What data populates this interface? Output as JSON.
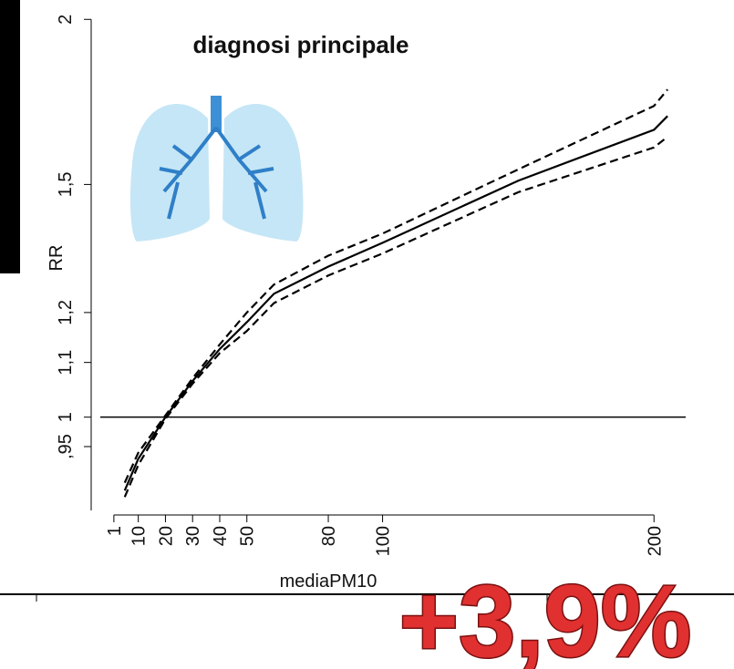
{
  "chart_data": {
    "type": "line",
    "title": "diagnosi principale",
    "x_label": "mediaPM10",
    "y_label": "RR",
    "annotation": "+3,9%",
    "x": [
      5,
      10,
      20,
      30,
      40,
      50,
      60,
      80,
      100,
      150,
      200,
      205
    ],
    "series": [
      {
        "color": "#000000",
        "dashed": false,
        "values": [
          0.88,
          0.93,
          1.0,
          1.065,
          1.126,
          1.18,
          1.24,
          1.3,
          1.355,
          1.51,
          1.65,
          1.69
        ]
      },
      {
        "color": "#000000",
        "dashed": true,
        "values": [
          0.892,
          0.94,
          1.003,
          1.07,
          1.135,
          1.2,
          1.26,
          1.325,
          1.377,
          1.54,
          1.72,
          1.77
        ]
      },
      {
        "color": "#000000",
        "dashed": true,
        "values": [
          0.87,
          0.92,
          0.997,
          1.06,
          1.118,
          1.162,
          1.22,
          1.28,
          1.33,
          1.48,
          1.6,
          1.63
        ]
      }
    ],
    "reference_line": 1,
    "xlim": [
      -4,
      211
    ],
    "ylim": [
      0.85,
      2.02
    ],
    "y_log": true,
    "xticks": [
      1,
      10,
      20,
      30,
      40,
      50,
      80,
      100,
      200
    ],
    "yticks": [
      {
        "value": 0.95,
        "label": ",95"
      },
      1,
      {
        "value": 1.1,
        "label": "1,1"
      },
      {
        "value": 1.2,
        "label": "1,2"
      },
      {
        "value": 1.5,
        "label": "1,5"
      },
      2
    ]
  }
}
